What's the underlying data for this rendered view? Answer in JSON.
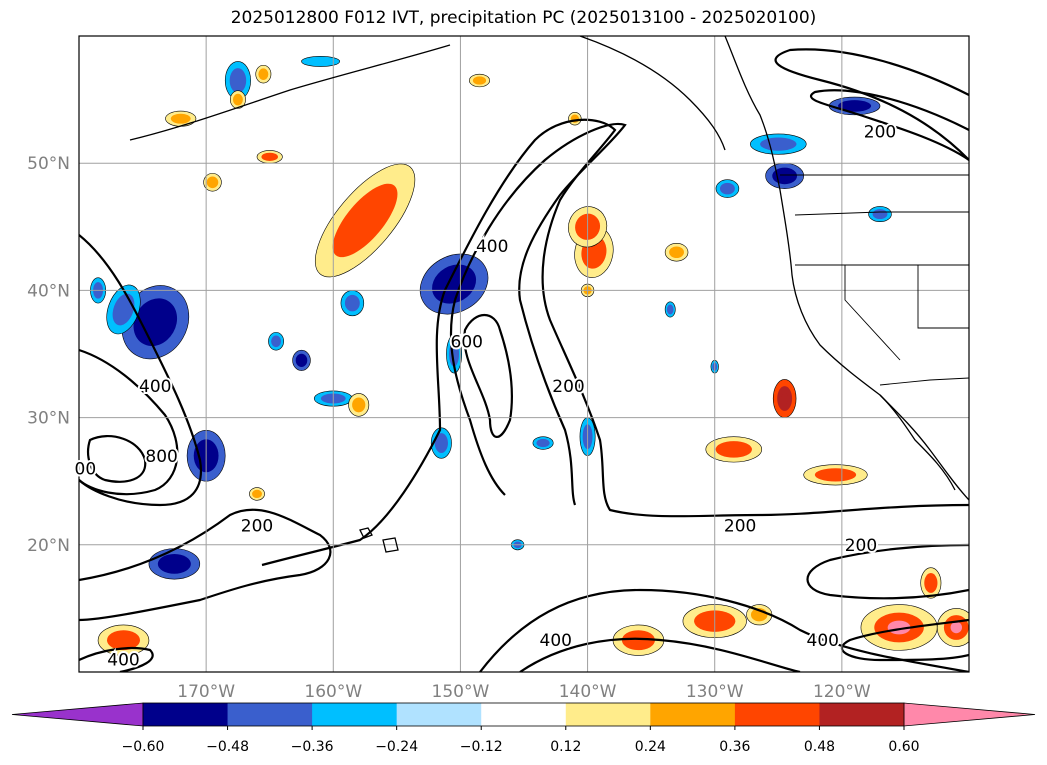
{
  "title": "2025012800 F012 IVT, precipitation PC (2025013100 - 2025020100)",
  "axes": {
    "lat_labels": [
      "50°N",
      "40°N",
      "30°N",
      "20°N"
    ],
    "lon_labels": [
      "170°W",
      "160°W",
      "150°W",
      "140°W",
      "130°W",
      "120°W"
    ],
    "label_color": "#808080"
  },
  "contour_labels": [
    {
      "text": "200",
      "lon": -117.0,
      "lat": 52.5
    },
    {
      "text": "400",
      "lon": -147.5,
      "lat": 43.5
    },
    {
      "text": "600",
      "lon": -149.5,
      "lat": 36.0
    },
    {
      "text": "200",
      "lon": -141.5,
      "lat": 32.5
    },
    {
      "text": "400",
      "lon": -174.0,
      "lat": 32.5
    },
    {
      "text": "800",
      "lon": -173.5,
      "lat": 27.0
    },
    {
      "text": "00",
      "lon": -179.5,
      "lat": 26.0
    },
    {
      "text": "200",
      "lon": -166.0,
      "lat": 21.5
    },
    {
      "text": "200",
      "lon": -128.0,
      "lat": 21.5
    },
    {
      "text": "200",
      "lon": -118.5,
      "lat": 20.0
    },
    {
      "text": "400",
      "lon": -142.5,
      "lat": 12.5
    },
    {
      "text": "400",
      "lon": -121.5,
      "lat": 12.5
    },
    {
      "text": "400",
      "lon": -176.5,
      "lat": 11.0
    }
  ],
  "colorbar": {
    "ticks": [
      "−0.60",
      "−0.48",
      "−0.36",
      "−0.24",
      "−0.12",
      "0.12",
      "0.24",
      "0.36",
      "0.48",
      "0.60"
    ],
    "under_color": "#9932cc",
    "over_color": "#ff88aa",
    "colors": [
      "#00008b",
      "#3a5fcd",
      "#00bfff",
      "#b0e2ff",
      "#ffffff",
      "#ffec8b",
      "#ffa500",
      "#ff4500",
      "#b22222"
    ]
  },
  "legend_colors": {
    "strong_negative": "#00008b",
    "mid_negative": "#3a5fcd",
    "weak_negative": "#00bfff",
    "weak_positive": "#ffec8b",
    "mid_positive": "#ffa500",
    "strong_positive": "#ff4500",
    "very_strong_positive": "#b22222",
    "extreme_positive": "#ff88aa"
  }
}
